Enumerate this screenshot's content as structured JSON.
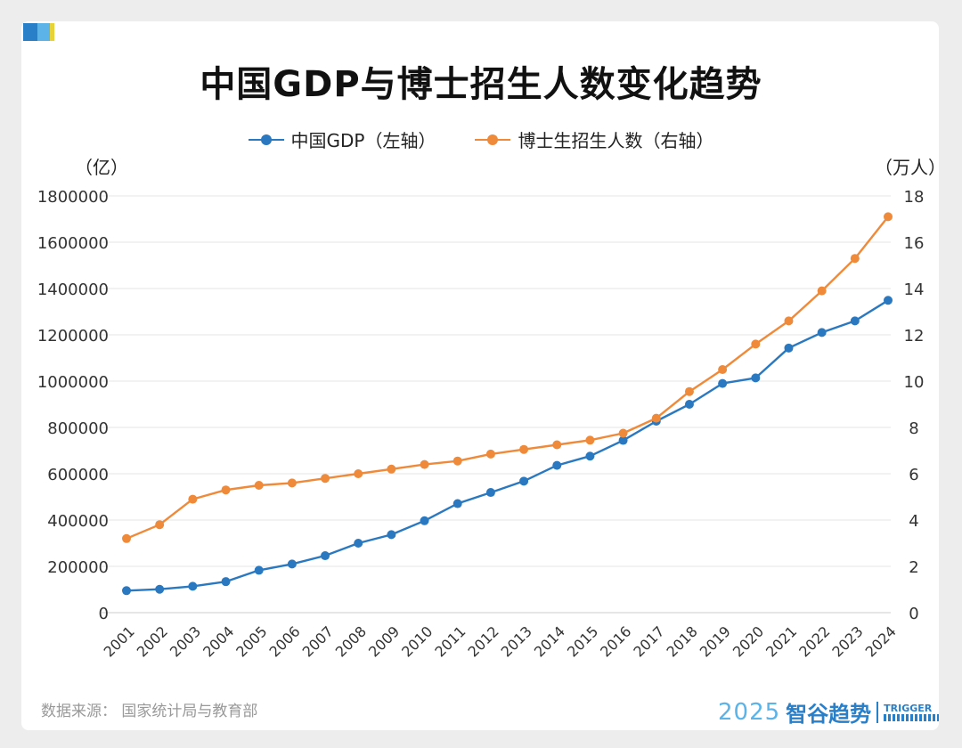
{
  "chart_data": {
    "type": "line",
    "title": "中国GDP与博士招生人数变化趋势",
    "left_unit": "（亿）",
    "right_unit": "（万人）",
    "x": [
      "2001",
      "2002",
      "2003",
      "2004",
      "2005",
      "2006",
      "2007",
      "2008",
      "2009",
      "2010",
      "2011",
      "2012",
      "2013",
      "2014",
      "2015",
      "2016",
      "2017",
      "2018",
      "2019",
      "2020",
      "2021",
      "2022",
      "2023",
      "2024"
    ],
    "series": [
      {
        "name": "中国GDP（左轴）",
        "axis": "left",
        "color": "#2a78c0",
        "values": [
          95000,
          101000,
          114000,
          134000,
          183000,
          210000,
          246000,
          300000,
          337000,
          397000,
          471000,
          519000,
          568000,
          636000,
          676000,
          744000,
          827000,
          900000,
          990000,
          1014000,
          1143000,
          1210000,
          1260000,
          1349000
        ]
      },
      {
        "name": "博士生招生人数（右轴）",
        "axis": "right",
        "color": "#ef8a3a",
        "values": [
          3.2,
          3.8,
          4.9,
          5.3,
          5.5,
          5.6,
          5.8,
          6.0,
          6.2,
          6.4,
          6.55,
          6.85,
          7.05,
          7.25,
          7.45,
          7.75,
          8.4,
          9.55,
          10.5,
          11.6,
          12.6,
          13.9,
          15.3,
          17.1
        ]
      }
    ],
    "y_left": {
      "min": 0,
      "max": 1800000,
      "ticks": [
        "0",
        "200000",
        "400000",
        "600000",
        "800000",
        "1000000",
        "1200000",
        "1400000",
        "1600000",
        "1800000"
      ]
    },
    "y_right": {
      "min": 0,
      "max": 18,
      "ticks": [
        "0",
        "2",
        "4",
        "6",
        "8",
        "10",
        "12",
        "14",
        "16",
        "18"
      ]
    },
    "grid": true,
    "legend_position": "top-center"
  },
  "footer": {
    "source": "数据来源：  国家统计局与教育部",
    "brand_year": "2025",
    "brand_name": "智谷趋势",
    "brand_en": "TRIGGER"
  },
  "colors": {
    "accent_blue": "#2a7fc9",
    "accent_light_blue": "#5bb3e8",
    "accent_yellow": "#e8d23a"
  }
}
